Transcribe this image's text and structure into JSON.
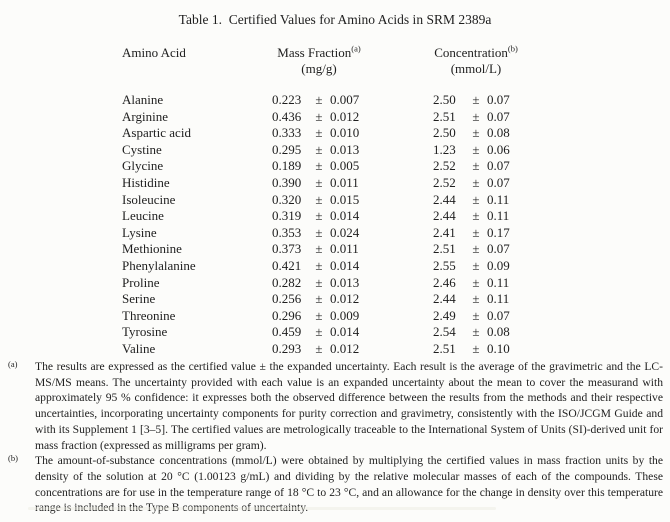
{
  "title": "Table 1.  Certified Values for Amino Acids in SRM 2389a",
  "table": {
    "columns": {
      "amino_acid": "Amino Acid",
      "mass_fraction": "Mass Fraction",
      "mass_fraction_note": "(a)",
      "mass_fraction_unit": "(mg/g)",
      "concentration": "Concentration",
      "concentration_note": "(b)",
      "concentration_unit": "(mmol/L)"
    },
    "plus_minus": "±",
    "rows": [
      {
        "name": "Alanine",
        "mass_fraction": "0.223",
        "mass_fraction_uncertainty": "0.007",
        "concentration": "2.50",
        "concentration_uncertainty": "0.07"
      },
      {
        "name": "Arginine",
        "mass_fraction": "0.436",
        "mass_fraction_uncertainty": "0.012",
        "concentration": "2.51",
        "concentration_uncertainty": "0.07"
      },
      {
        "name": "Aspartic acid",
        "mass_fraction": "0.333",
        "mass_fraction_uncertainty": "0.010",
        "concentration": "2.50",
        "concentration_uncertainty": "0.08"
      },
      {
        "name": "Cystine",
        "mass_fraction": "0.295",
        "mass_fraction_uncertainty": "0.013",
        "concentration": "1.23",
        "concentration_uncertainty": "0.06"
      },
      {
        "name": "Glycine",
        "mass_fraction": "0.189",
        "mass_fraction_uncertainty": "0.005",
        "concentration": "2.52",
        "concentration_uncertainty": "0.07"
      },
      {
        "name": "Histidine",
        "mass_fraction": "0.390",
        "mass_fraction_uncertainty": "0.011",
        "concentration": "2.52",
        "concentration_uncertainty": "0.07"
      },
      {
        "name": "Isoleucine",
        "mass_fraction": "0.320",
        "mass_fraction_uncertainty": "0.015",
        "concentration": "2.44",
        "concentration_uncertainty": "0.11"
      },
      {
        "name": "Leucine",
        "mass_fraction": "0.319",
        "mass_fraction_uncertainty": "0.014",
        "concentration": "2.44",
        "concentration_uncertainty": "0.11"
      },
      {
        "name": "Lysine",
        "mass_fraction": "0.353",
        "mass_fraction_uncertainty": "0.024",
        "concentration": "2.41",
        "concentration_uncertainty": "0.17"
      },
      {
        "name": "Methionine",
        "mass_fraction": "0.373",
        "mass_fraction_uncertainty": "0.011",
        "concentration": "2.51",
        "concentration_uncertainty": "0.07"
      },
      {
        "name": "Phenylalanine",
        "mass_fraction": "0.421",
        "mass_fraction_uncertainty": "0.014",
        "concentration": "2.55",
        "concentration_uncertainty": "0.09"
      },
      {
        "name": "Proline",
        "mass_fraction": "0.282",
        "mass_fraction_uncertainty": "0.013",
        "concentration": "2.46",
        "concentration_uncertainty": "0.11"
      },
      {
        "name": "Serine",
        "mass_fraction": "0.256",
        "mass_fraction_uncertainty": "0.012",
        "concentration": "2.44",
        "concentration_uncertainty": "0.11"
      },
      {
        "name": "Threonine",
        "mass_fraction": "0.296",
        "mass_fraction_uncertainty": "0.009",
        "concentration": "2.49",
        "concentration_uncertainty": "0.07"
      },
      {
        "name": "Tyrosine",
        "mass_fraction": "0.459",
        "mass_fraction_uncertainty": "0.014",
        "concentration": "2.54",
        "concentration_uncertainty": "0.08"
      },
      {
        "name": "Valine",
        "mass_fraction": "0.293",
        "mass_fraction_uncertainty": "0.012",
        "concentration": "2.51",
        "concentration_uncertainty": "0.10"
      }
    ]
  },
  "footnotes": [
    {
      "marker": "(a)",
      "text": "The results are expressed as the certified value ± the expanded uncertainty.  Each result is the average of the gravimetric and the LC-MS/MS means.  The uncertainty provided with each value is an expanded uncertainty about the mean to cover the measurand with approximately 95 % confidence:  it expresses both the observed difference between the results from the methods and their respective uncertainties, incorporating uncertainty components for purity correction and gravimetry, consistently with the ISO/JCGM Guide and with its Supplement 1 [3–5].  The certified values are metrologically traceable to the International System of Units (SI)-derived unit for mass fraction (expressed as milligrams per gram)."
    },
    {
      "marker": "(b)",
      "text": "The amount-of-substance concentrations (mmol/L) were obtained by multiplying the certified values in mass fraction units by the density of the solution at 20 °C (1.00123 g/mL) and dividing by the relative molecular masses of each of the compounds.  These concentrations are for use in the temperature range of 18 °C to 23 °C, and an allowance for the change in density over this temperature range is included in the Type B components of uncertainty."
    }
  ]
}
